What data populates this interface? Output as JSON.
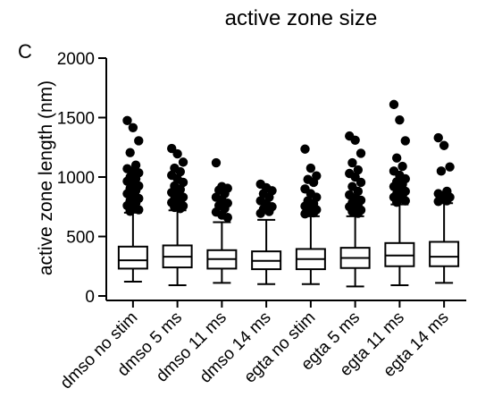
{
  "chart_data": {
    "type": "box",
    "title": "active zone size",
    "panel_label": "C",
    "xlabel": "",
    "ylabel": "active zone length (nm)",
    "ylim": [
      0,
      2000
    ],
    "yticks": [
      0,
      500,
      1000,
      1500,
      2000
    ],
    "grid": false,
    "legend": "none",
    "colors": {
      "box": "#ffffff",
      "stroke": "#000000",
      "outliers": "#000000"
    },
    "categories": [
      "dmso no stim",
      "dmso 5 ms",
      "dmso 11 ms",
      "dmso 14 ms",
      "egta no stim",
      "egta 5 ms",
      "egta 11 ms",
      "egta 14 ms"
    ],
    "boxes": [
      {
        "min": 120,
        "q1": 230,
        "median": 300,
        "q3": 415,
        "max": 700,
        "outliers": [
          1475,
          1415,
          1305,
          1205,
          1100,
          1070,
          1050,
          1035,
          1000,
          985,
          965,
          945,
          925,
          905,
          885,
          860,
          840,
          820,
          800,
          780,
          760,
          740,
          725,
          712
        ]
      },
      {
        "min": 90,
        "q1": 240,
        "median": 330,
        "q3": 425,
        "max": 720,
        "outliers": [
          1240,
          1195,
          1125,
          1075,
          1045,
          1015,
          985,
          955,
          925,
          895,
          870,
          850,
          830,
          815,
          800,
          785,
          770,
          757,
          745,
          735
        ]
      },
      {
        "min": 110,
        "q1": 230,
        "median": 310,
        "q3": 385,
        "max": 620,
        "outliers": [
          1120,
          920,
          905,
          890,
          860,
          830,
          805,
          780,
          760,
          735,
          705,
          680,
          660
        ]
      },
      {
        "min": 100,
        "q1": 225,
        "median": 295,
        "q3": 375,
        "max": 640,
        "outliers": [
          940,
          910,
          885,
          860,
          830,
          800,
          775,
          750,
          730,
          710,
          695
        ]
      },
      {
        "min": 100,
        "q1": 225,
        "median": 310,
        "q3": 395,
        "max": 670,
        "outliers": [
          1235,
          1075,
          1010,
          980,
          955,
          900,
          860,
          830,
          800,
          775,
          755,
          740,
          725,
          712,
          700,
          690
        ]
      },
      {
        "min": 80,
        "q1": 235,
        "median": 320,
        "q3": 405,
        "max": 670,
        "outliers": [
          1345,
          1310,
          1200,
          1120,
          1060,
          1030,
          1000,
          955,
          920,
          880,
          850,
          825,
          805,
          785,
          768,
          750,
          735,
          722,
          710,
          695
        ]
      },
      {
        "min": 90,
        "q1": 250,
        "median": 340,
        "q3": 445,
        "max": 770,
        "outliers": [
          1610,
          1480,
          1305,
          1160,
          1090,
          1050,
          1015,
          985,
          960,
          940,
          920,
          900,
          880,
          860,
          845,
          830,
          815,
          800,
          788
        ]
      },
      {
        "min": 110,
        "q1": 250,
        "median": 330,
        "q3": 455,
        "max": 780,
        "outliers": [
          1330,
          1265,
          1085,
          1050,
          880,
          860,
          845,
          830,
          815,
          800,
          795
        ]
      }
    ]
  }
}
